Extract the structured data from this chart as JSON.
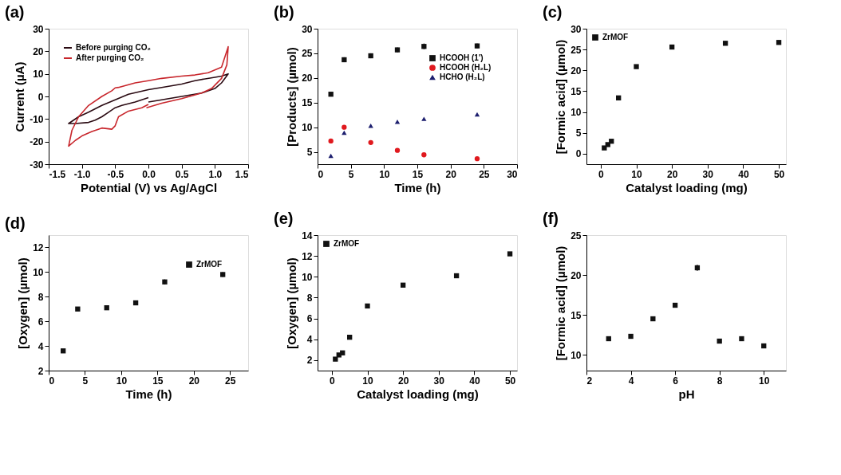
{
  "chart_data": [
    {
      "type": "line",
      "title": "(a)",
      "xlabel": "Potential (V) vs Ag/AgCl",
      "ylabel": "Current (µA)",
      "legend": "top left",
      "xlim": [
        -1.5,
        1.5
      ],
      "xticks": [
        {
          "value": -1.5,
          "label": "-1.5"
        },
        {
          "value": -1.0,
          "label": "-1.0"
        },
        {
          "value": -0.5,
          "label": "-0.5"
        },
        {
          "value": 0,
          "label": "0.0"
        },
        {
          "value": 0.5,
          "label": "0.5"
        },
        {
          "value": 1.0,
          "label": "1.0"
        },
        {
          "value": 1.5,
          "label": "1.5"
        }
      ],
      "ylim": [
        -30,
        30
      ],
      "yticks": [
        -30,
        -20,
        -10,
        0,
        10,
        20,
        30
      ],
      "series": [
        {
          "name": "Before purging CO₂",
          "color": "#2a0a12",
          "x": [
            0,
            0.2,
            0.5,
            0.8,
            1.0,
            1.1,
            1.2,
            1.1,
            1.0,
            0.7,
            0.5,
            0.2,
            0,
            -0.3,
            -0.5,
            -0.7,
            -0.9,
            -1.05,
            -1.2,
            -1.1,
            -0.9,
            -0.8,
            -0.7,
            -0.6,
            -0.5,
            -0.4,
            -0.2,
            0
          ],
          "values": [
            -2.5,
            -1.5,
            0,
            1.5,
            3.5,
            6,
            10,
            9,
            8.5,
            7,
            5.5,
            4,
            3,
            1,
            -1.5,
            -4,
            -7,
            -9,
            -12,
            -12,
            -11.5,
            -10.5,
            -9,
            -7,
            -5,
            -4,
            -2.5,
            -0.5
          ]
        },
        {
          "name": "After purging CO₂",
          "color": "#c8262c",
          "x": [
            -0.03,
            0.2,
            0.5,
            0.8,
            0.95,
            1.1,
            1.18,
            1.2,
            1.1,
            0.9,
            0.7,
            0.5,
            0.2,
            0,
            -0.2,
            -0.45,
            -0.5,
            -0.55,
            -0.7,
            -0.9,
            -1.05,
            -1.15,
            -1.2,
            -1.1,
            -1.0,
            -0.85,
            -0.7,
            -0.55,
            -0.5,
            -0.45,
            -0.3,
            -0.1,
            0
          ],
          "values": [
            -5,
            -3,
            -1,
            1.5,
            3.5,
            8,
            14,
            22,
            13,
            10.5,
            9.5,
            9,
            8,
            7,
            6,
            4,
            3.8,
            2.5,
            0,
            -4,
            -9,
            -15,
            -22,
            -19.5,
            -17.5,
            -15.5,
            -14,
            -14.5,
            -13,
            -9,
            -6.5,
            -5,
            -3.5
          ]
        }
      ]
    },
    {
      "type": "scatter",
      "title": "(b)",
      "xlabel": "Time (h)",
      "ylabel": "[Products] (µmol)",
      "legend": "top right",
      "xlim": [
        0,
        30
      ],
      "xticks": [
        0,
        5,
        10,
        15,
        20,
        25,
        30
      ],
      "ylim": [
        2.5,
        30
      ],
      "yticks": [
        5,
        10,
        15,
        20,
        25,
        30
      ],
      "x": [
        2,
        4,
        8,
        12,
        16,
        24
      ],
      "series": [
        {
          "name": "HCOOH (1')",
          "color": "#111111",
          "marker": "square",
          "values": [
            16.7,
            23.7,
            24.5,
            25.7,
            26.4,
            26.5
          ],
          "errors": [
            0.4,
            0.5,
            0.5,
            0.5,
            0.6,
            0.5
          ]
        },
        {
          "name": "HCOOH (H₂L)",
          "color": "#e0191e",
          "marker": "circle",
          "values": [
            7.2,
            10.0,
            6.9,
            5.3,
            4.4,
            3.6
          ]
        },
        {
          "name": "HCHO (H₂L)",
          "color": "#1c1e6e",
          "marker": "triangle",
          "values": [
            4.2,
            8.9,
            10.3,
            11.1,
            11.7,
            12.6
          ]
        }
      ]
    },
    {
      "type": "scatter",
      "title": "(c)",
      "xlabel": "Catalyst loading (mg)",
      "ylabel": "[Formic acid] (µmol)",
      "legend": "top left",
      "xlim": [
        -4,
        52
      ],
      "xticks": [
        0,
        10,
        20,
        30,
        40,
        50
      ],
      "ylim": [
        -2.5,
        30
      ],
      "yticks": [
        0,
        5,
        10,
        15,
        20,
        25,
        30
      ],
      "x": [
        1,
        2,
        3,
        5,
        10,
        20,
        35,
        50
      ],
      "series": [
        {
          "name": "ZrMOF",
          "color": "#111111",
          "marker": "square",
          "values": [
            1.4,
            2.2,
            3.0,
            13.4,
            20.9,
            25.6,
            26.5,
            26.7
          ],
          "errors": [
            null,
            null,
            null,
            null,
            null,
            0.4,
            0.5,
            0.5
          ]
        }
      ]
    },
    {
      "type": "scatter",
      "title": "(d)",
      "xlabel": "Time (h)",
      "ylabel": "[Oxygen] (µmol)",
      "legend": "top right",
      "xlim": [
        0,
        27.5
      ],
      "xticks": [
        0,
        5,
        10,
        15,
        20,
        25
      ],
      "ylim": [
        2,
        13
      ],
      "yticks": [
        2,
        4,
        6,
        8,
        10,
        12
      ],
      "x": [
        2,
        4,
        8,
        12,
        16,
        24
      ],
      "series": [
        {
          "name": "ZrMOF",
          "color": "#111111",
          "marker": "square",
          "values": [
            3.6,
            7.0,
            7.1,
            7.5,
            9.2,
            9.8
          ],
          "errors": [
            null,
            null,
            null,
            null,
            0.2,
            0.2
          ]
        }
      ]
    },
    {
      "type": "scatter",
      "title": "(e)",
      "xlabel": "Catalyst loading (mg)",
      "ylabel": "[Oxygen] (µmol)",
      "legend": "top left",
      "xlim": [
        -4,
        52
      ],
      "xticks": [
        0,
        10,
        20,
        30,
        40,
        50
      ],
      "ylim": [
        1,
        14
      ],
      "yticks": [
        2,
        4,
        6,
        8,
        10,
        12,
        14
      ],
      "x": [
        1,
        2,
        3,
        5,
        10,
        20,
        35,
        50
      ],
      "series": [
        {
          "name": "ZrMOF",
          "color": "#111111",
          "marker": "square",
          "values": [
            2.1,
            2.5,
            2.7,
            4.2,
            7.2,
            9.2,
            10.1,
            12.2
          ]
        }
      ]
    },
    {
      "type": "scatter",
      "title": "(f)",
      "xlabel": "pH",
      "ylabel": "[Formic acid] (µmol)",
      "xlim": [
        2,
        11
      ],
      "xticks": [
        2,
        4,
        6,
        8,
        10
      ],
      "ylim": [
        8,
        25
      ],
      "yticks": [
        10,
        15,
        20,
        25
      ],
      "x": [
        3,
        4,
        5,
        6,
        7,
        8,
        9,
        10
      ],
      "series": [
        {
          "color": "#111111",
          "marker": "square",
          "values": [
            12.0,
            12.3,
            14.5,
            16.2,
            20.9,
            11.7,
            12.0,
            11.1
          ],
          "errors": [
            null,
            null,
            0.2,
            0.3,
            0.4,
            null,
            null,
            null
          ]
        }
      ]
    }
  ]
}
